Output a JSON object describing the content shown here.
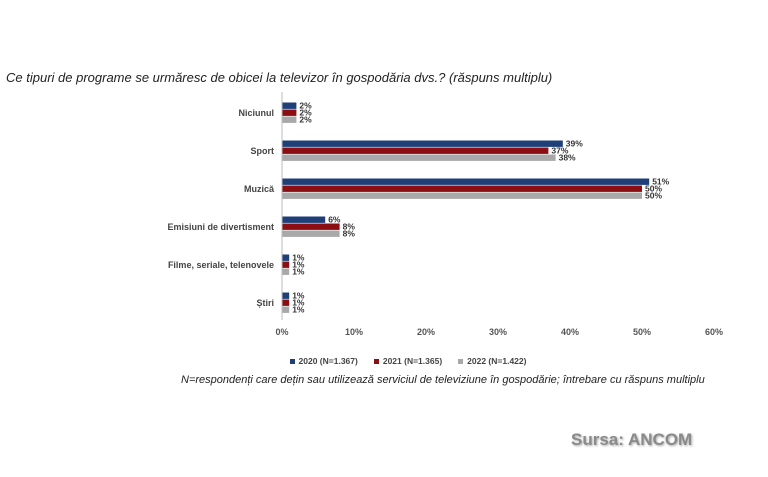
{
  "question": "Ce tipuri de programe se urmăresc de obicei la televizor în gospodăria dvs.? (răspuns multiplu)",
  "note": "N=respondenți care dețin sau utilizează serviciul de televiziune în gospodărie; întrebare cu răspuns multiplu",
  "source": "Sursa: ANCOM",
  "chart_data": {
    "type": "bar",
    "orientation": "horizontal",
    "title": "Ce tipuri de programe se urmăresc de obicei la televizor în gospodăria dvs.? (răspuns multiplu)",
    "categories": [
      "Niciunul",
      "Sport",
      "Muzică",
      "Emisiuni de divertisment",
      "Filme, seriale, telenovele",
      "Știri"
    ],
    "series": [
      {
        "name": "2020 (N=1.367)",
        "color": "#1f3f78",
        "values": [
          2,
          39,
          51,
          6,
          1,
          1
        ]
      },
      {
        "name": "2021 (N=1.365)",
        "color": "#8b0e12",
        "values": [
          2,
          37,
          50,
          8,
          1,
          1
        ]
      },
      {
        "name": "2022 (N=1.422)",
        "color": "#a9a9a9",
        "values": [
          2,
          38,
          50,
          8,
          1,
          1
        ]
      }
    ],
    "xlim": [
      0,
      60
    ],
    "ticks": [
      "0%",
      "10%",
      "20%",
      "30%",
      "40%",
      "50%",
      "60%"
    ],
    "grid": false,
    "legend_position": "bottom"
  }
}
